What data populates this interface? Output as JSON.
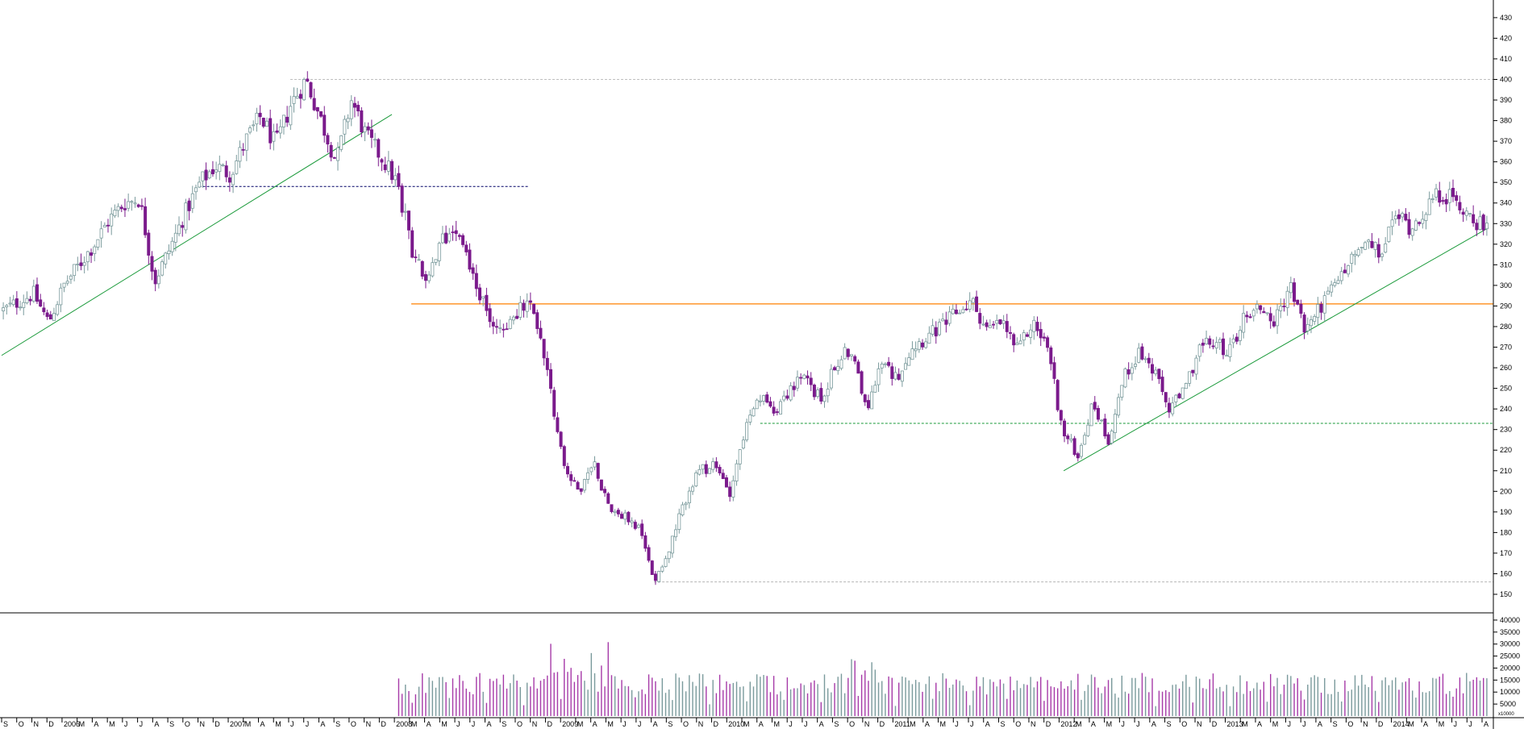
{
  "chart_data": [
    {
      "type": "candlestick",
      "title": "",
      "xlabel": "",
      "ylabel": "",
      "ylim": [
        141,
        437
      ],
      "y_ticks": [
        150,
        160,
        170,
        180,
        190,
        200,
        210,
        220,
        230,
        240,
        250,
        260,
        270,
        280,
        290,
        300,
        310,
        320,
        330,
        340,
        350,
        360,
        370,
        380,
        390,
        400,
        410,
        420,
        430
      ],
      "x_labels": [
        "S",
        "O",
        "N",
        "D",
        "2006",
        "M",
        "A",
        "M",
        "J",
        "J",
        "A",
        "S",
        "O",
        "N",
        "D",
        "2007",
        "M",
        "A",
        "M",
        "J",
        "J",
        "A",
        "S",
        "O",
        "N",
        "D",
        "2008",
        "M",
        "A",
        "M",
        "J",
        "J",
        "A",
        "S",
        "O",
        "N",
        "D",
        "2009",
        "M",
        "A",
        "M",
        "J",
        "J",
        "A",
        "S",
        "O",
        "N",
        "D",
        "2010",
        "M",
        "A",
        "M",
        "J",
        "J",
        "A",
        "S",
        "O",
        "N",
        "D",
        "2011",
        "M",
        "A",
        "M",
        "J",
        "J",
        "A",
        "S",
        "O",
        "N",
        "D",
        "2012",
        "M",
        "A",
        "M",
        "J",
        "J",
        "A",
        "S",
        "O",
        "N",
        "D",
        "2013",
        "M",
        "A",
        "M",
        "J",
        "J",
        "A",
        "S",
        "O",
        "N",
        "D",
        "2014",
        "M",
        "A",
        "M",
        "J",
        "J",
        "A"
      ],
      "colors": {
        "up": "#7a9a9c",
        "down": "#7b1a8c",
        "support": "#ff8000",
        "trend": "#1a9a3a",
        "grid": "#aaaaaa",
        "dashed_navy": "#000066"
      },
      "price_path": [
        [
          0,
          288
        ],
        [
          2,
          296
        ],
        [
          3,
          282
        ],
        [
          4,
          300
        ],
        [
          5,
          310
        ],
        [
          6,
          320
        ],
        [
          7,
          332
        ],
        [
          8,
          340
        ],
        [
          9,
          342
        ],
        [
          10,
          302
        ],
        [
          11,
          318
        ],
        [
          12,
          335
        ],
        [
          13,
          350
        ],
        [
          14,
          358
        ],
        [
          15,
          354
        ],
        [
          16,
          370
        ],
        [
          17,
          382
        ],
        [
          18,
          368
        ],
        [
          19,
          388
        ],
        [
          20,
          400
        ],
        [
          21,
          380
        ],
        [
          22,
          360
        ],
        [
          23,
          390
        ],
        [
          24,
          372
        ],
        [
          25,
          362
        ],
        [
          26,
          350
        ],
        [
          27,
          318
        ],
        [
          28,
          300
        ],
        [
          29,
          322
        ],
        [
          30,
          330
        ],
        [
          31,
          305
        ],
        [
          32,
          285
        ],
        [
          33,
          278
        ],
        [
          34,
          288
        ],
        [
          35,
          290
        ],
        [
          36,
          255
        ],
        [
          37,
          215
        ],
        [
          38,
          198
        ],
        [
          39,
          215
        ],
        [
          40,
          192
        ],
        [
          41,
          188
        ],
        [
          42,
          182
        ],
        [
          43,
          157
        ],
        [
          44,
          172
        ],
        [
          45,
          195
        ],
        [
          46,
          210
        ],
        [
          47,
          212
        ],
        [
          48,
          200
        ],
        [
          49,
          230
        ],
        [
          50,
          245
        ],
        [
          51,
          240
        ],
        [
          52,
          250
        ],
        [
          53,
          255
        ],
        [
          54,
          244
        ],
        [
          55,
          262
        ],
        [
          56,
          270
        ],
        [
          57,
          240
        ],
        [
          58,
          262
        ],
        [
          59,
          255
        ],
        [
          60,
          270
        ],
        [
          61,
          275
        ],
        [
          62,
          280
        ],
        [
          63,
          287
        ],
        [
          64,
          292
        ],
        [
          65,
          278
        ],
        [
          66,
          282
        ],
        [
          67,
          268
        ],
        [
          68,
          282
        ],
        [
          69,
          270
        ],
        [
          70,
          228
        ],
        [
          71,
          218
        ],
        [
          72,
          243
        ],
        [
          73,
          225
        ],
        [
          74,
          255
        ],
        [
          75,
          268
        ],
        [
          76,
          258
        ],
        [
          77,
          240
        ],
        [
          78,
          248
        ],
        [
          79,
          270
        ],
        [
          80,
          272
        ],
        [
          81,
          268
        ],
        [
          82,
          285
        ],
        [
          83,
          290
        ],
        [
          84,
          282
        ],
        [
          85,
          300
        ],
        [
          86,
          278
        ],
        [
          87,
          290
        ],
        [
          88,
          300
        ],
        [
          89,
          312
        ],
        [
          90,
          320
        ],
        [
          91,
          315
        ],
        [
          92,
          335
        ],
        [
          93,
          328
        ],
        [
          94,
          338
        ],
        [
          95,
          345
        ],
        [
          96,
          340
        ],
        [
          97,
          334
        ],
        [
          98,
          326
        ]
      ],
      "volume_ylim": [
        0,
        42000
      ],
      "volume_ticks": [
        5000,
        10000,
        15000,
        20000,
        25000,
        30000,
        35000,
        40000
      ],
      "volume_unit": "x10000",
      "annotations": {
        "support_level": 291,
        "peak_level": 400,
        "trough_level": 156,
        "neckline_2008": 348,
        "neckline_2010_2012": 233,
        "trend_2006": {
          "from": [
            0,
            266
          ],
          "to": [
            30,
            383
          ]
        },
        "trend_2011": {
          "from": [
            70,
            210
          ],
          "to": [
            98,
            328
          ]
        }
      }
    }
  ]
}
